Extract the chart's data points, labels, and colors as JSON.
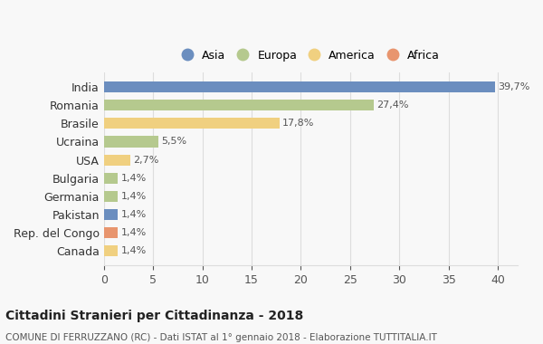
{
  "countries": [
    "India",
    "Romania",
    "Brasile",
    "Ucraina",
    "USA",
    "Bulgaria",
    "Germania",
    "Pakistan",
    "Rep. del Congo",
    "Canada"
  ],
  "values": [
    39.7,
    27.4,
    17.8,
    5.5,
    2.7,
    1.4,
    1.4,
    1.4,
    1.4,
    1.4
  ],
  "labels": [
    "39,7%",
    "27,4%",
    "17,8%",
    "5,5%",
    "2,7%",
    "1,4%",
    "1,4%",
    "1,4%",
    "1,4%",
    "1,4%"
  ],
  "continents": [
    "Asia",
    "Europa",
    "America",
    "Europa",
    "America",
    "Europa",
    "Europa",
    "Asia",
    "Africa",
    "America"
  ],
  "continent_colors": {
    "Asia": "#6b8ebf",
    "Europa": "#b5c98e",
    "America": "#f0d080",
    "Africa": "#e8956e"
  },
  "legend_order": [
    "Asia",
    "Europa",
    "America",
    "Africa"
  ],
  "xlim": [
    0,
    42
  ],
  "xticks": [
    0,
    5,
    10,
    15,
    20,
    25,
    30,
    35,
    40
  ],
  "title": "Cittadini Stranieri per Cittadinanza - 2018",
  "subtitle": "COMUNE DI FERRUZZANO (RC) - Dati ISTAT al 1° gennaio 2018 - Elaborazione TUTTITALIA.IT",
  "background_color": "#f8f8f8",
  "bar_height": 0.6,
  "grid_color": "#dddddd"
}
